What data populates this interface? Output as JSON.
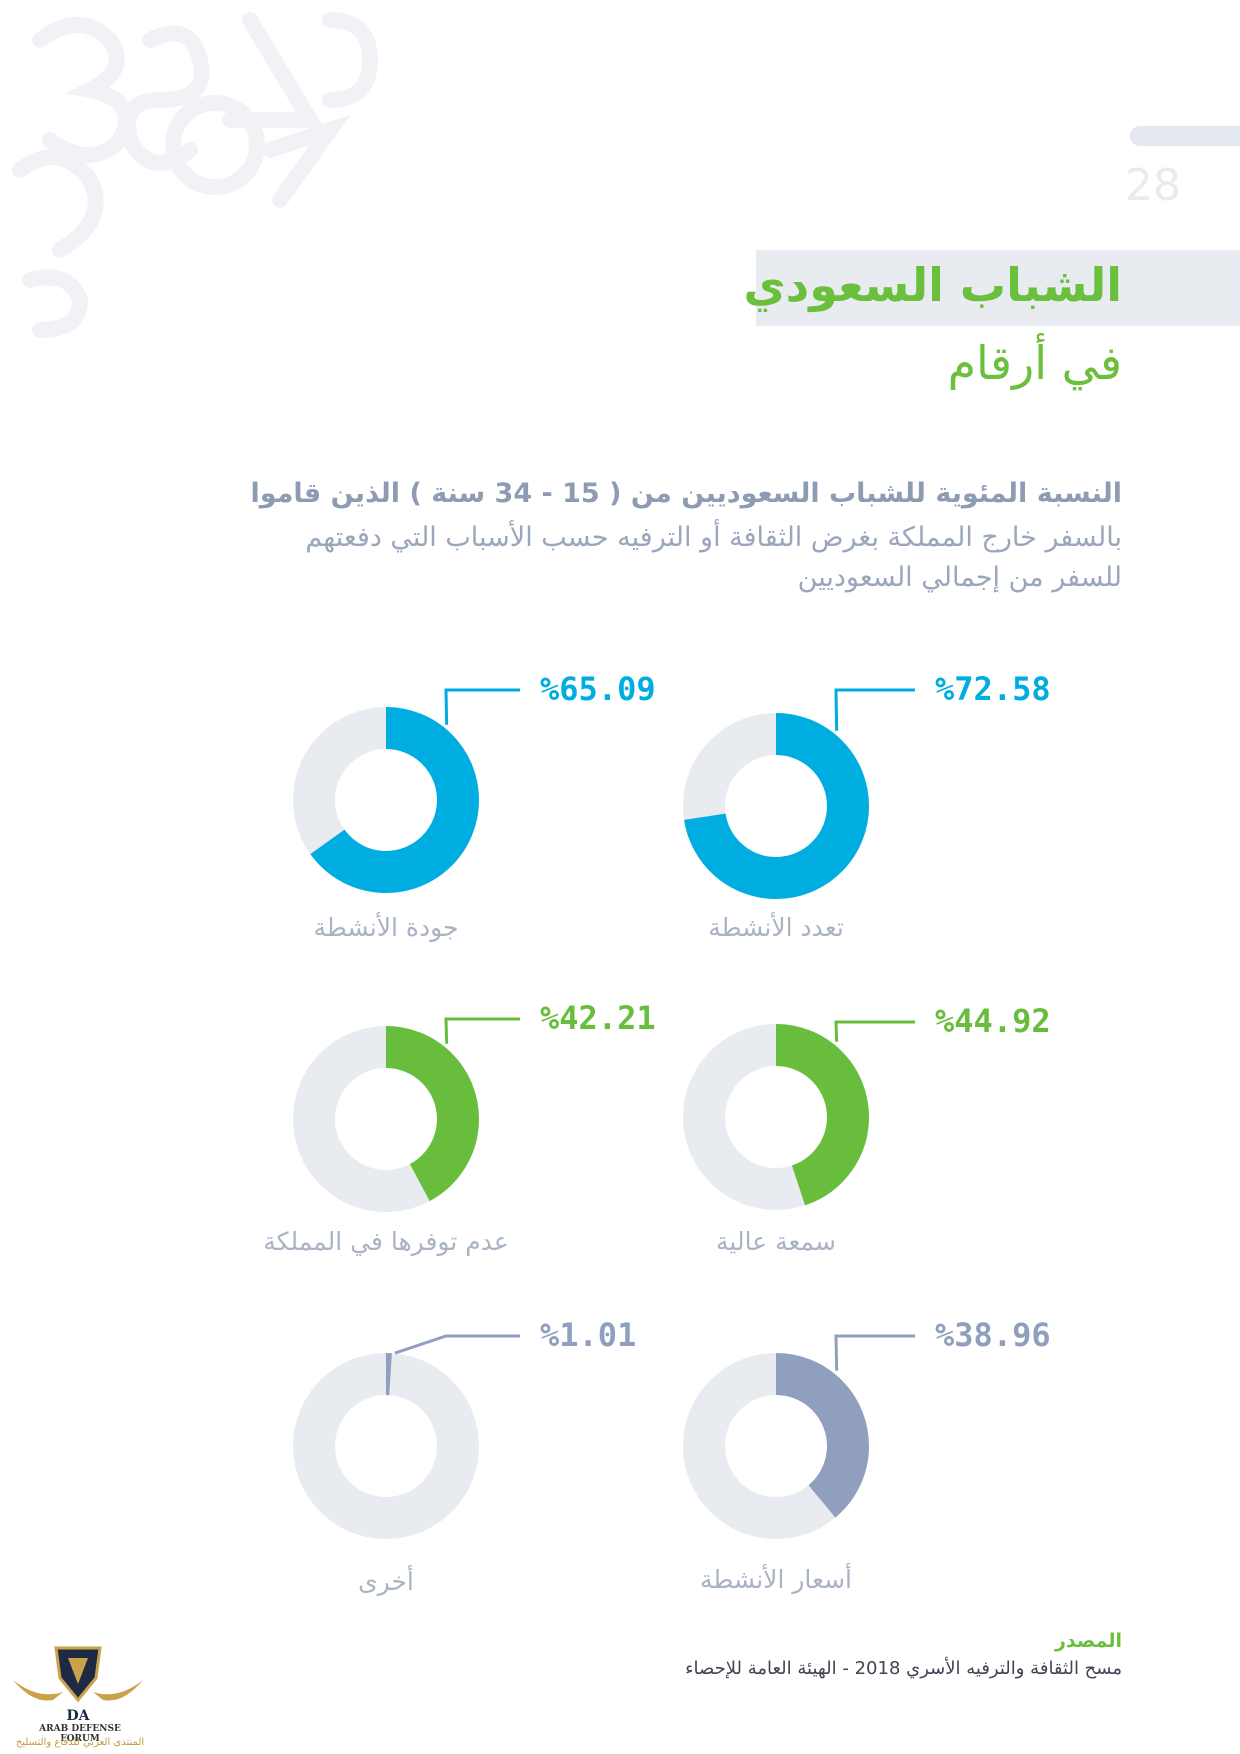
{
  "page": {
    "page_number": "28"
  },
  "header": {
    "title": "الشباب السعودي",
    "subtitle": "في أرقام"
  },
  "description": {
    "line1": "النسبة المئوية للشباب السعوديين من ( 15 - 34 سنة ) الذين قاموا",
    "line2": "بالسفر خارج المملكة بغرض الثقافة أو الترفيه حسب الأسباب التي دفعتهم",
    "line3": "للسفر من إجمالي السعوديين"
  },
  "colors": {
    "blue": "#00ade1",
    "green": "#68bd3d",
    "slate": "#8f9fbd",
    "track": "#e8ebf0"
  },
  "chart_data": [
    {
      "type": "pie",
      "label": "تعدد الأنشطة",
      "value_label": "%72.58",
      "values": [
        72.58,
        27.42
      ],
      "color": "blue"
    },
    {
      "type": "pie",
      "label": "جودة الأنشطة",
      "value_label": "%65.09",
      "values": [
        65.09,
        34.91
      ],
      "color": "blue"
    },
    {
      "type": "pie",
      "label": "سمعة عالية",
      "value_label": "%44.92",
      "values": [
        44.92,
        55.08
      ],
      "color": "green"
    },
    {
      "type": "pie",
      "label": "عدم توفرها في المملكة",
      "value_label": "%42.21",
      "values": [
        42.21,
        57.79
      ],
      "color": "green"
    },
    {
      "type": "pie",
      "label": "أسعار الأنشطة",
      "value_label": "%38.96",
      "values": [
        38.96,
        61.04
      ],
      "color": "slate"
    },
    {
      "type": "pie",
      "label": "أخرى",
      "value_label": "%1.01",
      "values": [
        1.01,
        98.99
      ],
      "color": "slate"
    }
  ],
  "source": {
    "label": "المصدر",
    "text": "مسح الثقافة والترفيه الأسري 2018 - الهيئة العامة للإحصاء"
  },
  "logo": {
    "monogram": "DA",
    "name_en": "ARAB DEFENSE FORUM",
    "name_ar": "المنتدى العربي للدفاع والتسليح"
  }
}
